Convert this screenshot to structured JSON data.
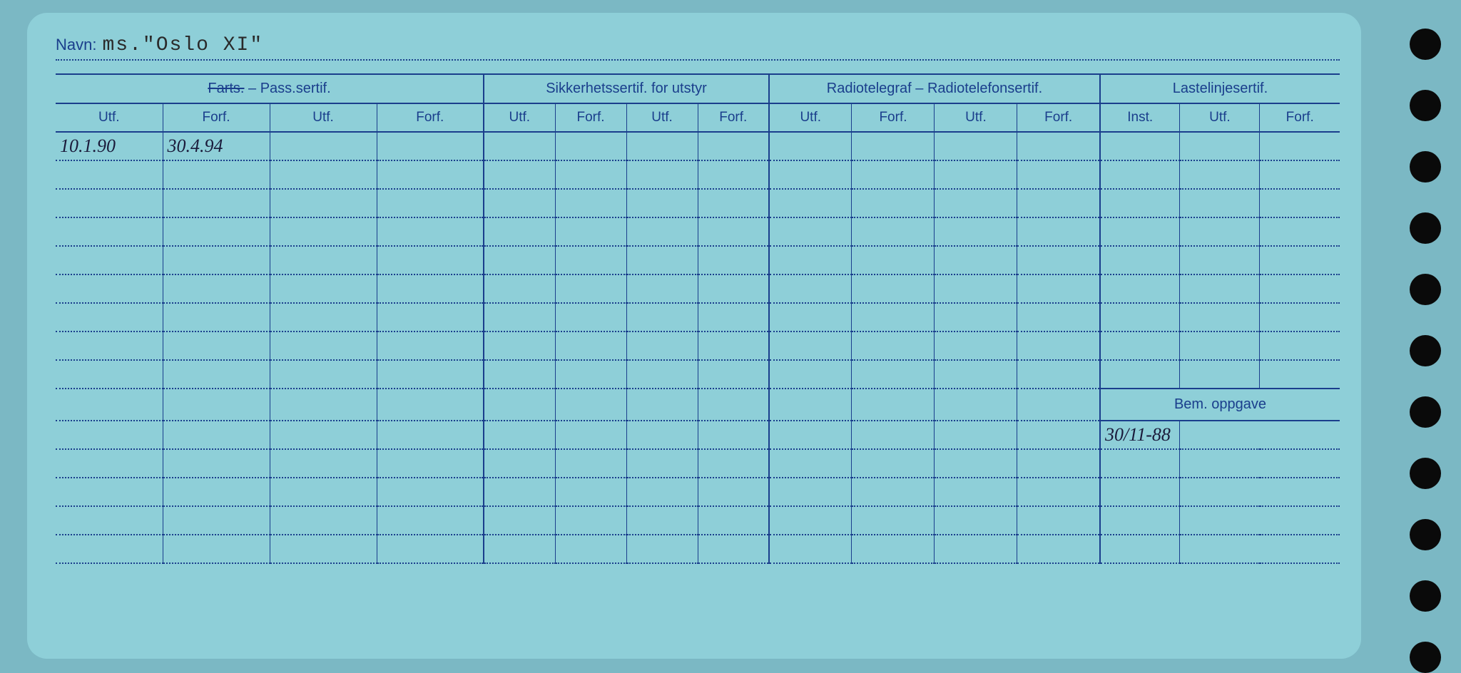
{
  "navn": {
    "label": "Navn:",
    "value": "ms.\"Oslo XI\""
  },
  "groups": {
    "farts": {
      "strike": "Farts.",
      "rest": " – Pass.sertif."
    },
    "sikker": "Sikkerhetssertif. for utstyr",
    "radio": "Radiotelegraf – Radiotelefonsertif.",
    "laste": "Lastelinjesertif.",
    "bem": "Bem. oppgave"
  },
  "sub": {
    "utf": "Utf.",
    "forf": "Forf.",
    "inst": "Inst."
  },
  "entries": {
    "row0": {
      "farts_utf1": "10.1.90",
      "farts_forf1": "30.4.94"
    },
    "bem_row0": "30/11-88"
  },
  "layout": {
    "body_rows": 15,
    "bem_split_row": 9
  },
  "colors": {
    "page_bg": "#7bb8c4",
    "card_bg": "#8ecfd8",
    "ink": "#1a3e8c",
    "pen": "#1a1a3a",
    "hole": "#0a0a0a"
  }
}
